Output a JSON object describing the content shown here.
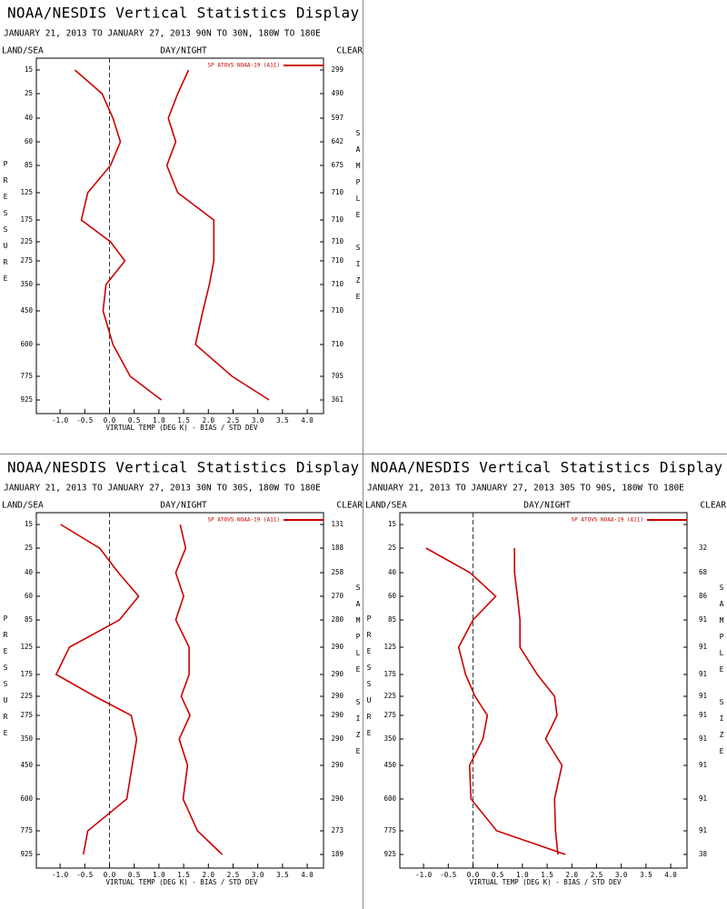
{
  "chart_data": [
    {
      "type": "line",
      "title": "NOAA/NESDIS Vertical Statistics Display",
      "subtitle": "JANUARY 21, 2013 TO JANUARY 27, 2013  90N TO 30N, 180W TO 180E",
      "left_header": "LAND/SEA",
      "center_header": "DAY/NIGHT",
      "right_header": "CLEAR",
      "y_label": "PRESSURE",
      "y2_label": "SAMPLE SIZE",
      "x_label": "VIRTUAL TEMP (DEG K) - BIAS / STD DEV",
      "legend": "SP ATOVS NOAA-19 (A11)",
      "categories": [
        15,
        25,
        40,
        60,
        85,
        125,
        175,
        225,
        275,
        350,
        450,
        600,
        775,
        925
      ],
      "sample_size": [
        299,
        490,
        597,
        642,
        675,
        710,
        710,
        710,
        710,
        710,
        710,
        710,
        705,
        361
      ],
      "series": [
        {
          "color": "#cc0000",
          "values": [
            -0.7,
            -0.15,
            0.07,
            0.22,
            0.02,
            -0.44,
            -0.57,
            0.02,
            0.31,
            -0.07,
            -0.13,
            0.07,
            0.42,
            1.05
          ]
        },
        {
          "color": "#cc0000",
          "values": [
            1.6,
            1.38,
            1.19,
            1.34,
            1.16,
            1.38,
            2.11,
            2.11,
            2.11,
            2.02,
            1.89,
            1.74,
            2.48,
            3.23
          ]
        }
      ],
      "xlim": [
        -1.48,
        4.33
      ],
      "xticks": [
        {
          "value": -1,
          "label": "-1.0"
        },
        -0.5,
        {
          "value": 0,
          "label": "0.0"
        },
        0.5,
        {
          "value": 1,
          "label": "1.0"
        },
        1.5,
        {
          "value": 2,
          "label": "2.0"
        },
        2.5,
        {
          "value": 3,
          "label": "3.0"
        },
        3.5,
        {
          "value": 4,
          "label": "4.0"
        }
      ]
    },
    {
      "type": "line",
      "title": "NOAA/NESDIS Vertical Statistics Display",
      "subtitle": "JANUARY 21, 2013 TO JANUARY 27, 2013  30N TO 30S, 180W TO 180E",
      "left_header": "LAND/SEA",
      "center_header": "DAY/NIGHT",
      "right_header": "CLEAR",
      "y_label": "PRESSURE",
      "y2_label": "SAMPLE SIZE",
      "x_label": "VIRTUAL TEMP (DEG K) - BIAS / STD DEV",
      "legend": "SP ATOVS NOAA-19 (A11)",
      "categories": [
        15,
        25,
        40,
        60,
        85,
        125,
        175,
        225,
        275,
        350,
        450,
        600,
        775,
        925
      ],
      "sample_size": [
        131,
        188,
        258,
        270,
        280,
        290,
        290,
        290,
        290,
        290,
        290,
        290,
        273,
        189
      ],
      "series": [
        {
          "color": "#cc0000",
          "values": [
            -0.99,
            -0.2,
            0.18,
            0.59,
            0.2,
            -0.81,
            -1.08,
            -0.3,
            0.44,
            0.55,
            0.46,
            0.35,
            -0.44,
            -0.53
          ]
        },
        {
          "color": "#cc0000",
          "values": [
            1.43,
            1.54,
            1.34,
            1.5,
            1.34,
            1.61,
            1.61,
            1.45,
            1.63,
            1.41,
            1.58,
            1.49,
            1.78,
            2.28
          ]
        }
      ],
      "xlim": [
        -1.48,
        4.33
      ],
      "xticks": [
        {
          "value": -1,
          "label": "-1.0"
        },
        -0.5,
        {
          "value": 0,
          "label": "0.0"
        },
        0.5,
        {
          "value": 1,
          "label": "1.0"
        },
        1.5,
        {
          "value": 2,
          "label": "2.0"
        },
        2.5,
        {
          "value": 3,
          "label": "3.0"
        },
        3.5,
        {
          "value": 4,
          "label": "4.0"
        }
      ]
    },
    {
      "type": "line",
      "title": "NOAA/NESDIS Vertical Statistics Display",
      "subtitle": "JANUARY 21, 2013 TO JANUARY 27, 2013  30S TO 90S, 180W TO 180E",
      "left_header": "LAND/SEA",
      "center_header": "DAY/NIGHT",
      "right_header": "CLEAR",
      "y_label": "PRESSURE",
      "y2_label": "SAMPLE SIZE",
      "x_label": "VIRTUAL TEMP (DEG K) - BIAS / STD DEV",
      "legend": "SP ATOVS NOAA-19 (A11)",
      "categories": [
        15,
        25,
        40,
        60,
        85,
        125,
        175,
        225,
        275,
        350,
        450,
        600,
        775,
        925
      ],
      "sample_size": [
        null,
        32,
        68,
        86,
        91,
        91,
        91,
        91,
        91,
        91,
        91,
        91,
        91,
        38
      ],
      "series": [
        {
          "color": "#cc0000",
          "values": [
            null,
            -0.95,
            -0.06,
            0.46,
            0.0,
            -0.29,
            -0.15,
            0.04,
            0.29,
            0.2,
            -0.07,
            -0.04,
            0.48,
            1.87
          ]
        },
        {
          "color": "#cc0000",
          "values": [
            null,
            0.84,
            0.84,
            0.9,
            0.95,
            0.95,
            1.3,
            1.65,
            1.7,
            1.47,
            1.8,
            1.65,
            1.67,
            1.72
          ]
        }
      ],
      "xlim": [
        -1.48,
        4.33
      ],
      "xticks": [
        {
          "value": -1,
          "label": "-1.0"
        },
        -0.5,
        {
          "value": 0,
          "label": "0.0"
        },
        0.5,
        {
          "value": 1,
          "label": "1.0"
        },
        1.5,
        {
          "value": 2,
          "label": "2.0"
        },
        2.5,
        {
          "value": 3,
          "label": "3.0"
        },
        3.5,
        {
          "value": 4,
          "label": "4.0"
        }
      ]
    }
  ]
}
